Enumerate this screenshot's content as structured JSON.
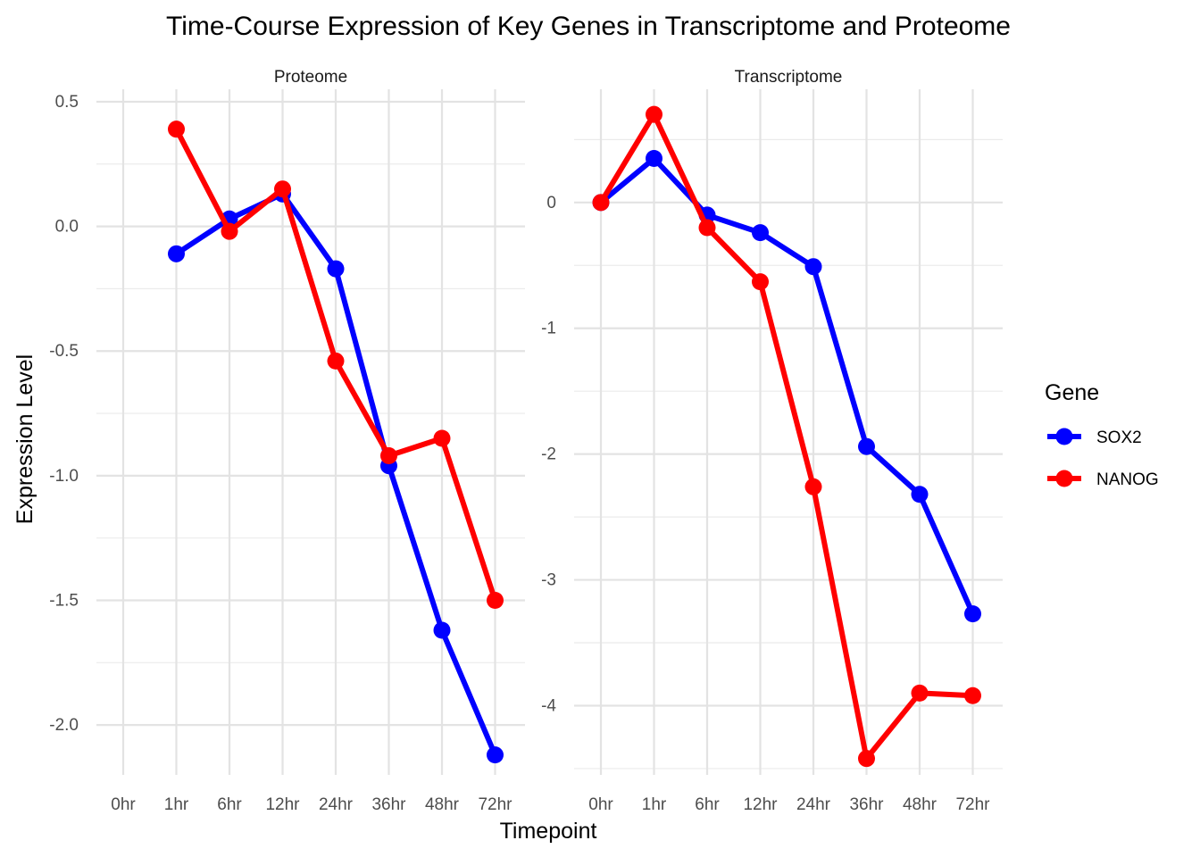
{
  "chart_data": {
    "type": "line",
    "title": "Time-Course Expression of Key Genes in Transcriptome and Proteome",
    "xlabel": "Timepoint",
    "ylabel": "Expression Level",
    "categories": [
      "0hr",
      "1hr",
      "6hr",
      "12hr",
      "24hr",
      "36hr",
      "48hr",
      "72hr"
    ],
    "grid": true,
    "legend": {
      "title": "Gene",
      "placement": "right",
      "entries": [
        "SOX2",
        "NANOG"
      ]
    },
    "colors": {
      "SOX2": "#0000ff",
      "NANOG": "#ff0000"
    },
    "panels": [
      {
        "strip": "Proteome",
        "ylim": [
          -2.2,
          0.55
        ],
        "yticks": [
          0.5,
          0.0,
          -0.5,
          -1.0,
          -1.5,
          -2.0
        ],
        "ytick_labels": [
          "0.5",
          "0.0",
          "-0.5",
          "-1.0",
          "-1.5",
          "-2.0"
        ],
        "series": [
          {
            "name": "SOX2",
            "values": [
              null,
              -0.11,
              0.03,
              0.13,
              -0.17,
              -0.96,
              -1.62,
              -2.12
            ]
          },
          {
            "name": "NANOG",
            "values": [
              null,
              0.39,
              -0.02,
              0.15,
              -0.54,
              -0.92,
              -0.85,
              -1.5
            ]
          }
        ]
      },
      {
        "strip": "Transcriptome",
        "ylim": [
          -4.55,
          0.9
        ],
        "yticks": [
          0,
          -1,
          -2,
          -3,
          -4
        ],
        "ytick_labels": [
          "0",
          "-1",
          "-2",
          "-3",
          "-4"
        ],
        "series": [
          {
            "name": "SOX2",
            "values": [
              0.0,
              0.35,
              -0.1,
              -0.24,
              -0.51,
              -1.94,
              -2.32,
              -3.27
            ]
          },
          {
            "name": "NANOG",
            "values": [
              0.0,
              0.7,
              -0.2,
              -0.63,
              -2.26,
              -4.42,
              -3.9,
              -3.92
            ]
          }
        ]
      }
    ]
  }
}
